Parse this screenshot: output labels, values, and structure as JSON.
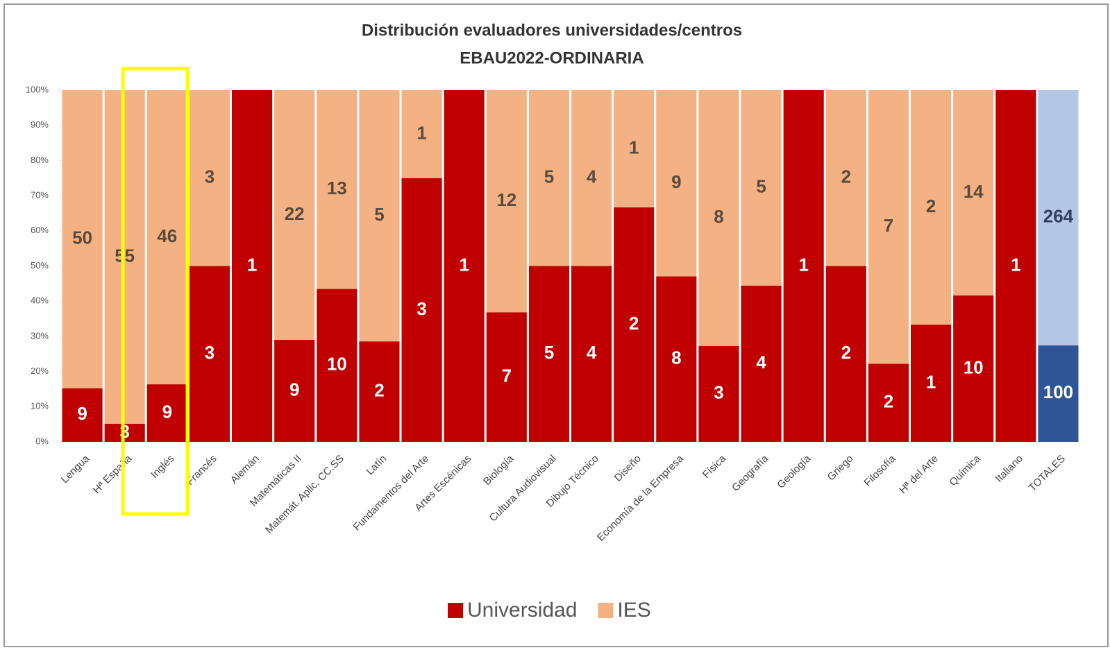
{
  "chart_data": {
    "type": "bar",
    "stacking": "percent",
    "title": "Distribución evaluadores universidades/centros",
    "subtitle": "EBAU2022-ORDINARIA",
    "categories": [
      "Lengua",
      "Hª España",
      "Inglés",
      "Francés",
      "Alemán",
      "Matemáticas II",
      "Matemát. Aplic. CC.SS",
      "Latín",
      "Fundamentos del Arte",
      "Artes Escénicas",
      "Biología",
      "Cultura Audiovisual",
      "Dibujo Técnico",
      "Diseño",
      "Economía de la Empresa",
      "Física",
      "Geografía",
      "Geología",
      "Griego",
      "Filosofía",
      "Hª del Arte",
      "Química",
      "Italiano",
      "TOTALES"
    ],
    "series": [
      {
        "name": "Universidad",
        "color": "#c00000",
        "totals_color": "#2f5597",
        "values": [
          9,
          3,
          9,
          3,
          1,
          9,
          10,
          2,
          3,
          1,
          7,
          5,
          4,
          2,
          8,
          3,
          4,
          1,
          2,
          2,
          1,
          10,
          1,
          100
        ]
      },
      {
        "name": "IES",
        "color": "#f4b183",
        "totals_color": "#b4c7e7",
        "values": [
          50,
          55,
          46,
          3,
          0,
          22,
          13,
          5,
          1,
          0,
          12,
          5,
          4,
          1,
          9,
          8,
          5,
          0,
          2,
          7,
          2,
          14,
          0,
          264
        ]
      }
    ],
    "ylim": [
      0,
      100
    ],
    "yticks": [
      {
        "value": 0,
        "label": "0%"
      },
      {
        "value": 10,
        "label": "10%"
      },
      {
        "value": 20,
        "label": "20%"
      },
      {
        "value": 30,
        "label": "30%"
      },
      {
        "value": 40,
        "label": "40%"
      },
      {
        "value": 50,
        "label": "50%"
      },
      {
        "value": 60,
        "label": "60%"
      },
      {
        "value": 70,
        "label": "70%"
      },
      {
        "value": 80,
        "label": "80%"
      },
      {
        "value": 90,
        "label": "90%"
      },
      {
        "value": 100,
        "label": "100%"
      }
    ],
    "legend": "bottom"
  }
}
